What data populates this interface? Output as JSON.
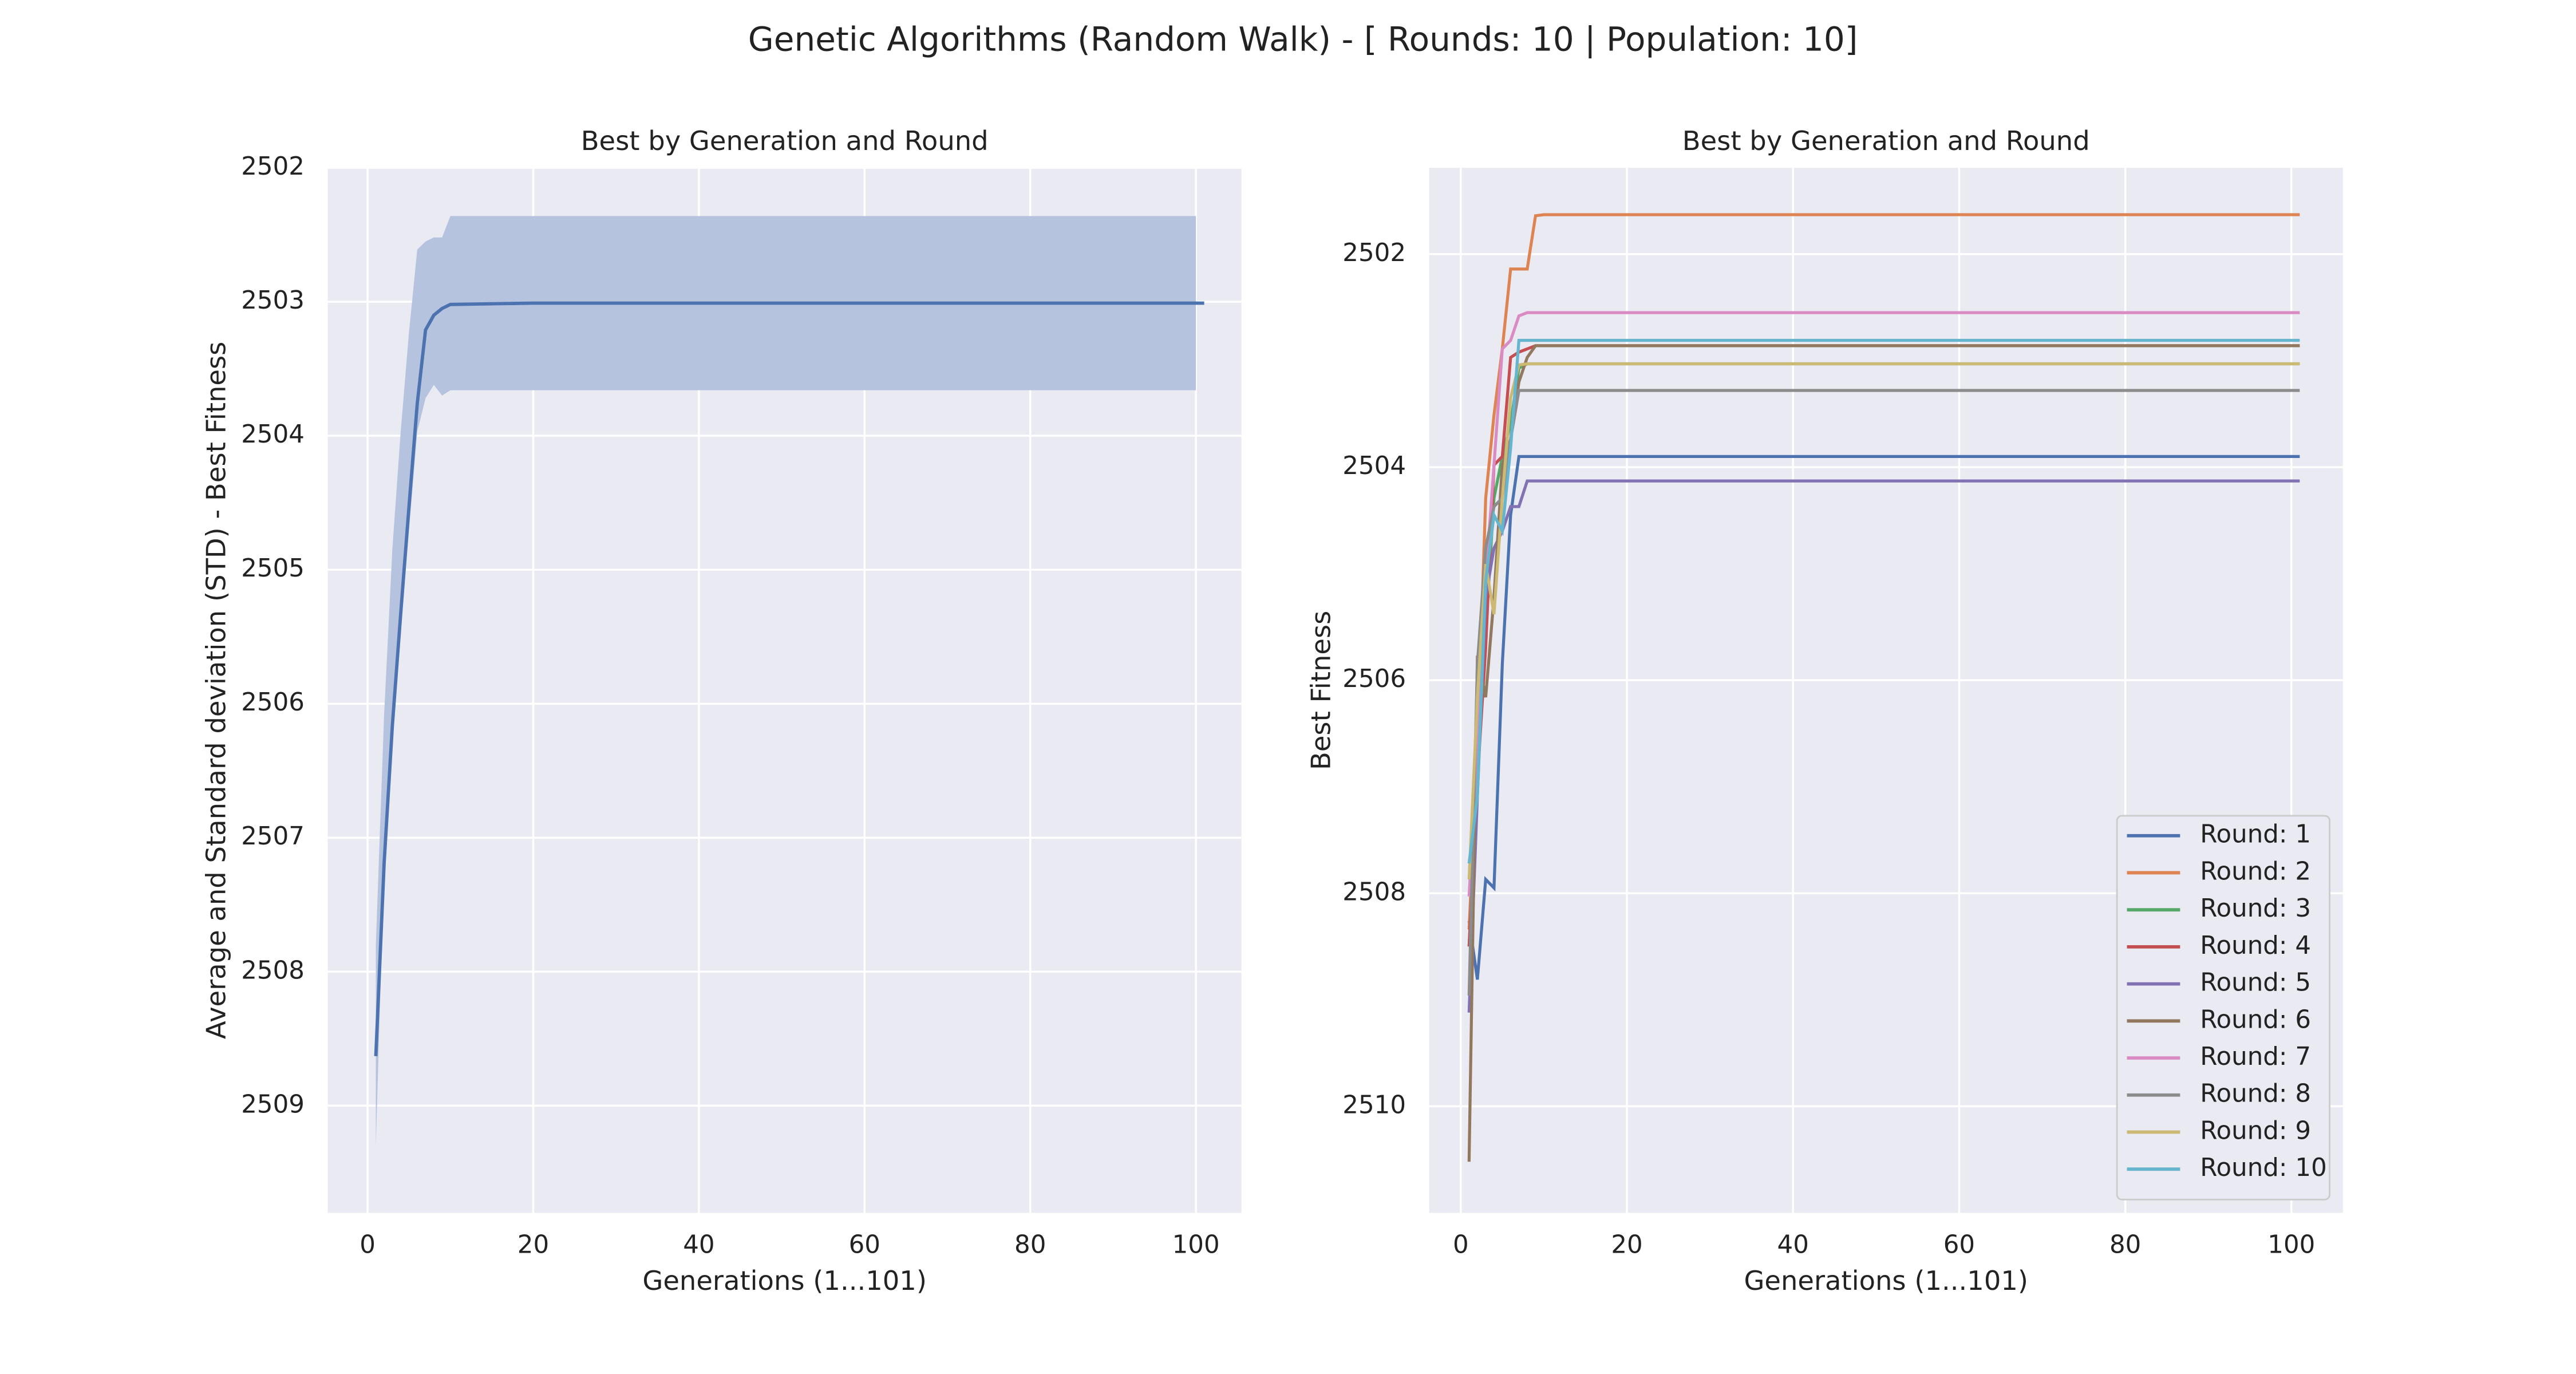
{
  "figure_title": "Genetic Algorithms (Random Walk) - [ Rounds: 10 | Population: 10]",
  "chart_data": [
    {
      "type": "line",
      "title": "Best by Generation and Round",
      "x_label": "Generations (1...101)",
      "y_label": "Average and Standard deviation (STD) - Best Fitness",
      "x": [
        1,
        2,
        3,
        4,
        5,
        6,
        7,
        8,
        9,
        10,
        20,
        40,
        60,
        80,
        100,
        101
      ],
      "values": [
        2508.63,
        2507.19,
        2506.16,
        2505.33,
        2504.53,
        2503.76,
        2503.21,
        2503.1,
        2503.05,
        2503.02,
        2503.01,
        2503.01,
        2503.01,
        2503.01,
        2503.01,
        2503.01
      ],
      "band_low": [
        2507.8,
        2506.08,
        2504.84,
        2503.97,
        2503.23,
        2502.61,
        2502.55,
        2502.52,
        2502.52,
        2502.36,
        2502.36,
        2502.36,
        2502.36,
        2502.36,
        2502.36,
        null
      ],
      "band_high": [
        2509.3,
        2507.19,
        2506.2,
        2505.46,
        2504.71,
        2503.97,
        2503.72,
        2503.62,
        2503.7,
        2503.66,
        2503.66,
        2503.66,
        2503.66,
        2503.66,
        2503.66,
        null
      ],
      "color": "#4c72b0",
      "band_color": "#b5c3df",
      "xlim": [
        -4.8,
        105.5
      ],
      "ylim": [
        2509.8,
        2502
      ],
      "xticks": [
        0,
        20,
        40,
        60,
        80,
        100
      ],
      "yticks": [
        2502,
        2503,
        2504,
        2505,
        2506,
        2507,
        2508,
        2509
      ],
      "grid": true
    },
    {
      "type": "line",
      "title": "Best by Generation and Round",
      "x_label": "Generations (1...101)",
      "y_label": "Best Fitness",
      "x": [
        1,
        2,
        3,
        4,
        5,
        6,
        7,
        8,
        9,
        10,
        101
      ],
      "series": [
        {
          "name": "Round: 1",
          "color": "#4c72b0",
          "values": [
            2508.26,
            2508.81,
            2507.87,
            2507.95,
            2505.85,
            2504.45,
            2503.9,
            2503.9,
            2503.9,
            2503.9,
            2503.9
          ]
        },
        {
          "name": "Round: 2",
          "color": "#dd8452",
          "values": [
            2508.34,
            2506.63,
            2504.29,
            2503.51,
            2502.89,
            2502.14,
            2502.14,
            2502.14,
            2501.64,
            2501.63,
            2501.63
          ]
        },
        {
          "name": "Round: 3",
          "color": "#55a868",
          "values": [
            2508.5,
            2506.94,
            2505.54,
            2504.29,
            2503.9,
            2503.59,
            2503.07,
            2503.03,
            2503.03,
            2503.03,
            2503.03
          ]
        },
        {
          "name": "Round: 4",
          "color": "#c44e52",
          "values": [
            2508.5,
            2506.94,
            2505.69,
            2503.98,
            2503.9,
            2502.97,
            2502.92,
            2502.89,
            2502.86,
            2502.86,
            2502.86
          ]
        },
        {
          "name": "Round: 5",
          "color": "#8172b3",
          "values": [
            2509.12,
            2507.09,
            2505.22,
            2504.76,
            2504.6,
            2504.37,
            2504.37,
            2504.13,
            2504.13,
            2504.13,
            2504.13
          ]
        },
        {
          "name": "Round: 6",
          "color": "#937860",
          "values": [
            2510.52,
            2505.77,
            2506.16,
            2505.22,
            2503.98,
            2503.74,
            2503.2,
            2502.97,
            2502.86,
            2502.86,
            2502.86
          ]
        },
        {
          "name": "Round: 7",
          "color": "#da8bc3",
          "values": [
            2508.03,
            2506.63,
            2505.07,
            2503.98,
            2502.89,
            2502.81,
            2502.58,
            2502.55,
            2502.55,
            2502.55,
            2502.55
          ]
        },
        {
          "name": "Round: 8",
          "color": "#8c8c8c",
          "values": [
            2508.96,
            2505.85,
            2504.76,
            2504.37,
            2504.29,
            2503.74,
            2503.28,
            2503.28,
            2503.28,
            2503.28,
            2503.28
          ]
        },
        {
          "name": "Round: 9",
          "color": "#ccb974",
          "values": [
            2507.87,
            2506.16,
            2504.91,
            2505.38,
            2504.29,
            2503.35,
            2503.04,
            2503.03,
            2503.03,
            2503.03,
            2503.03
          ]
        },
        {
          "name": "Round: 10",
          "color": "#64b5cd",
          "values": [
            2507.72,
            2507.09,
            2505.07,
            2504.45,
            2504.6,
            2503.82,
            2502.81,
            2502.81,
            2502.81,
            2502.81,
            2502.81
          ]
        }
      ],
      "xlim": [
        -3.8,
        106.2
      ],
      "ylim": [
        2511,
        2501.19
      ],
      "xticks": [
        0,
        20,
        40,
        60,
        80,
        100
      ],
      "yticks": [
        2502,
        2504,
        2506,
        2508,
        2510
      ],
      "grid": true,
      "legend": "lower right"
    }
  ]
}
